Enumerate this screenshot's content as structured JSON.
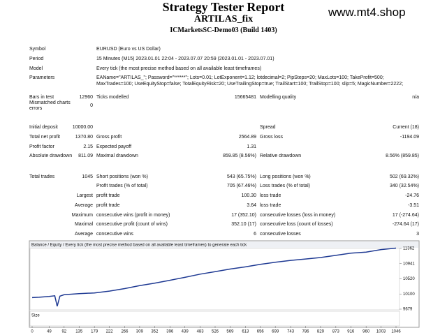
{
  "header": {
    "title": "Strategy Tester Report",
    "ea": "ARTILAS_fix",
    "server": "ICMarketsSC-Demo03 (Build 1403)",
    "site": "www.mt4.shop"
  },
  "info": [
    [
      "Symbol",
      "EURUSD (Euro vs US Dollar)"
    ],
    [
      "Period",
      "15 Minutes (M15) 2023.01.01 22:04 - 2023.07.07 20:59 (2023.01.01 - 2023.07.01)"
    ],
    [
      "Model",
      "Every tick (the most precise method based on all available least timeframes)"
    ],
    [
      "Parameters",
      "EAName=\"ARTILAS_\"; Password=\"******\"; Lots=0.01; LotExponent=1.12; lotdecimal=2; PipSteps=20; MaxLots=100; TakeProfit=500;",
      "MaxTrades=100; UseEquityStop=false; TotalEquityRisk=20; UseTrailingStop=true; TrailStart=100; TrailStop=100; slip=5; MagicNumber=2222;"
    ]
  ],
  "stats": [
    {
      "c0": "Bars in test",
      "v0": "12960",
      "c1": "Ticks modelled",
      "v1": "15665481",
      "c2": "Modelling quality",
      "v2": "n/a"
    },
    {
      "c0": "Mismatched charts errors",
      "v0": "0"
    },
    {
      "c0": "Initial deposit",
      "v0": "10000.00",
      "c2": "Spread",
      "v2": "Current (18)"
    },
    {
      "c0": "Total net profit",
      "v0": "1370.80",
      "c1": "Gross profit",
      "v1": "2564.89",
      "c2": "Gross loss",
      "v2": "-1194.09"
    },
    {
      "c0": "Profit factor",
      "v0": "2.15",
      "c1": "Expected payoff",
      "v1": "1.31"
    },
    {
      "c0": "Absolute drawdown",
      "v0": "811.09",
      "c1": "Maximal drawdown",
      "v1": "859.85 (8.56%)",
      "c2": "Relative drawdown",
      "v2": "8.56% (859.85)"
    },
    {
      "c0": "Total trades",
      "v0": "1045",
      "c1": "Short positions (won %)",
      "v1": "543 (65.75%)",
      "c2": "Long positions (won %)",
      "v2": "502 (69.32%)"
    },
    {
      "c1": "Profit trades (% of total)",
      "v1": "705 (67.46%)",
      "c2": "Loss trades (% of total)",
      "v2": "340 (32.54%)"
    },
    {
      "v0": "Largest",
      "c1": "profit trade",
      "v1": "100.30",
      "c2": "loss trade",
      "v2": "-24.76"
    },
    {
      "v0": "Average",
      "c1": "profit trade",
      "v1": "3.64",
      "c2": "loss trade",
      "v2": "-3.51"
    },
    {
      "v0": "Maximum",
      "c1": "consecutive wins (profit in money)",
      "v1": "17 (352.10)",
      "c2": "consecutive losses (loss in money)",
      "v2": "17 (-274.64)"
    },
    {
      "v0": "Maximal",
      "c1": "consecutive profit (count of wins)",
      "v1": "352.10 (17)",
      "c2": "consecutive loss (count of losses)",
      "v2": "-274.64 (17)"
    },
    {
      "v0": "Average",
      "c1": "consecutive wins",
      "v1": "6",
      "c2": "consecutive losses",
      "v2": "3"
    }
  ],
  "chart_data": {
    "type": "line",
    "title": "Balance / Equity / Every tick (the most precise method based on all available least timeframes) to generate each tick",
    "size_label": "Size",
    "color": "#1f3a93",
    "x": [
      0,
      20,
      49,
      65,
      72,
      80,
      92,
      135,
      179,
      222,
      266,
      309,
      352,
      396,
      439,
      483,
      526,
      569,
      613,
      656,
      699,
      743,
      786,
      829,
      873,
      916,
      960,
      1003,
      1046
    ],
    "values": [
      10000,
      10010,
      10030,
      10050,
      9760,
      10040,
      10080,
      10110,
      10130,
      10180,
      10250,
      10330,
      10400,
      10480,
      10560,
      10650,
      10720,
      10790,
      10850,
      10920,
      10980,
      11030,
      11070,
      11110,
      11170,
      11230,
      11260,
      11330,
      11370.8
    ],
    "xlim": [
      0,
      1046
    ],
    "xticks": [
      0,
      49,
      92,
      135,
      179,
      222,
      266,
      309,
      352,
      396,
      439,
      483,
      526,
      569,
      613,
      656,
      699,
      743,
      786,
      829,
      873,
      916,
      960,
      1003,
      1046
    ],
    "ylim": [
      9640,
      11400
    ],
    "yticks": [
      9679,
      10100,
      10520,
      10941,
      11362
    ]
  }
}
